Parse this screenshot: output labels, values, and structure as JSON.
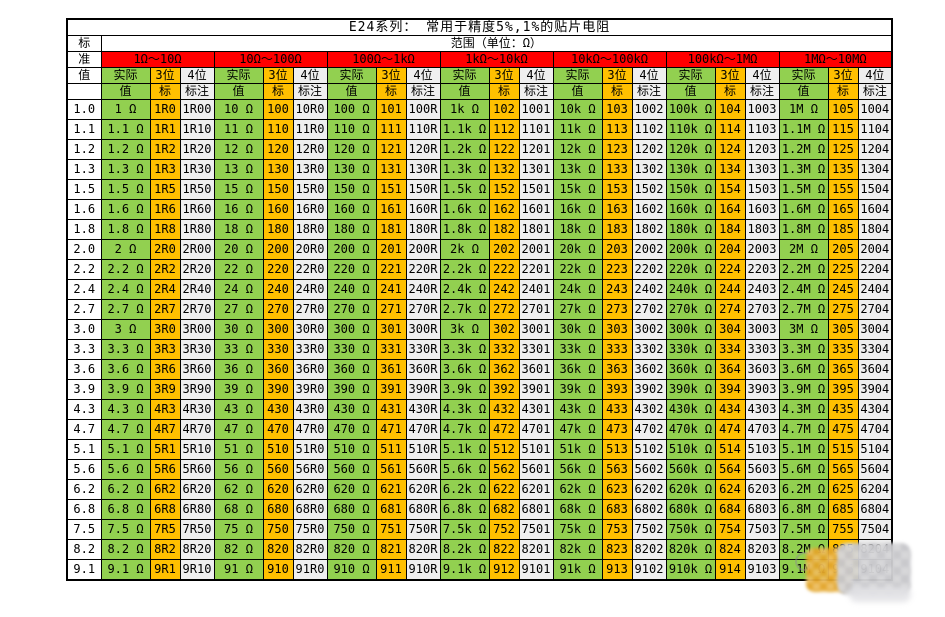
{
  "colors": {
    "green": "#92D050",
    "orange": "#FFC000",
    "red": "#FF0000",
    "gray": "#EFEFEF",
    "border": "#000000",
    "bg": "#FFFFFF"
  },
  "table": {
    "title": "E24系列： 常用于精度5%,1%的贴片电阻",
    "range_label": "范围（单位：Ω）",
    "corner": [
      "标",
      "准",
      "值",
      ""
    ],
    "ranges": [
      "1Ω～10Ω",
      "10Ω～100Ω",
      "100Ω～1kΩ",
      "1kΩ～10kΩ",
      "10kΩ～100kΩ",
      "100kΩ～1MΩ",
      "1MΩ～10MΩ"
    ],
    "sub1": [
      "实际",
      "3位",
      "4位"
    ],
    "sub2": [
      "值",
      "标",
      "标注"
    ],
    "rows": [
      [
        "1.0",
        "1 Ω",
        "1R0",
        "1R00",
        "10 Ω",
        "100",
        "10R0",
        "100 Ω",
        "101",
        "100R",
        "1k Ω",
        "102",
        "1001",
        "10k Ω",
        "103",
        "1002",
        "100k Ω",
        "104",
        "1003",
        "1M Ω",
        "105",
        "1004"
      ],
      [
        "1.1",
        "1.1 Ω",
        "1R1",
        "1R10",
        "11 Ω",
        "110",
        "11R0",
        "110 Ω",
        "111",
        "110R",
        "1.1k Ω",
        "112",
        "1101",
        "11k Ω",
        "113",
        "1102",
        "110k Ω",
        "114",
        "1103",
        "1.1M Ω",
        "115",
        "1104"
      ],
      [
        "1.2",
        "1.2 Ω",
        "1R2",
        "1R20",
        "12 Ω",
        "120",
        "12R0",
        "120 Ω",
        "121",
        "120R",
        "1.2k Ω",
        "122",
        "1201",
        "12k Ω",
        "123",
        "1202",
        "120k Ω",
        "124",
        "1203",
        "1.2M Ω",
        "125",
        "1204"
      ],
      [
        "1.3",
        "1.3 Ω",
        "1R3",
        "1R30",
        "13 Ω",
        "130",
        "13R0",
        "130 Ω",
        "131",
        "130R",
        "1.3k Ω",
        "132",
        "1301",
        "13k Ω",
        "133",
        "1302",
        "130k Ω",
        "134",
        "1303",
        "1.3M Ω",
        "135",
        "1304"
      ],
      [
        "1.5",
        "1.5 Ω",
        "1R5",
        "1R50",
        "15 Ω",
        "150",
        "15R0",
        "150 Ω",
        "151",
        "150R",
        "1.5k Ω",
        "152",
        "1501",
        "15k Ω",
        "153",
        "1502",
        "150k Ω",
        "154",
        "1503",
        "1.5M Ω",
        "155",
        "1504"
      ],
      [
        "1.6",
        "1.6 Ω",
        "1R6",
        "1R60",
        "16 Ω",
        "160",
        "16R0",
        "160 Ω",
        "161",
        "160R",
        "1.6k Ω",
        "162",
        "1601",
        "16k Ω",
        "163",
        "1602",
        "160k Ω",
        "164",
        "1603",
        "1.6M Ω",
        "165",
        "1604"
      ],
      [
        "1.8",
        "1.8 Ω",
        "1R8",
        "1R80",
        "18 Ω",
        "180",
        "18R0",
        "180 Ω",
        "181",
        "180R",
        "1.8k Ω",
        "182",
        "1801",
        "18k Ω",
        "183",
        "1802",
        "180k Ω",
        "184",
        "1803",
        "1.8M Ω",
        "185",
        "1804"
      ],
      [
        "2.0",
        "2 Ω",
        "2R0",
        "2R00",
        "20 Ω",
        "200",
        "20R0",
        "200 Ω",
        "201",
        "200R",
        "2k Ω",
        "202",
        "2001",
        "20k Ω",
        "203",
        "2002",
        "200k Ω",
        "204",
        "2003",
        "2M Ω",
        "205",
        "2004"
      ],
      [
        "2.2",
        "2.2 Ω",
        "2R2",
        "2R20",
        "22 Ω",
        "220",
        "22R0",
        "220 Ω",
        "221",
        "220R",
        "2.2k Ω",
        "222",
        "2201",
        "22k Ω",
        "223",
        "2202",
        "220k Ω",
        "224",
        "2203",
        "2.2M Ω",
        "225",
        "2204"
      ],
      [
        "2.4",
        "2.4 Ω",
        "2R4",
        "2R40",
        "24 Ω",
        "240",
        "24R0",
        "240 Ω",
        "241",
        "240R",
        "2.4k Ω",
        "242",
        "2401",
        "24k Ω",
        "243",
        "2402",
        "240k Ω",
        "244",
        "2403",
        "2.4M Ω",
        "245",
        "2404"
      ],
      [
        "2.7",
        "2.7 Ω",
        "2R7",
        "2R70",
        "27 Ω",
        "270",
        "27R0",
        "270 Ω",
        "271",
        "270R",
        "2.7k Ω",
        "272",
        "2701",
        "27k Ω",
        "273",
        "2702",
        "270k Ω",
        "274",
        "2703",
        "2.7M Ω",
        "275",
        "2704"
      ],
      [
        "3.0",
        "3 Ω",
        "3R0",
        "3R00",
        "30 Ω",
        "300",
        "30R0",
        "300 Ω",
        "301",
        "300R",
        "3k Ω",
        "302",
        "3001",
        "30k Ω",
        "303",
        "3002",
        "300k Ω",
        "304",
        "3003",
        "3M Ω",
        "305",
        "3004"
      ],
      [
        "3.3",
        "3.3 Ω",
        "3R3",
        "3R30",
        "33 Ω",
        "330",
        "33R0",
        "330 Ω",
        "331",
        "330R",
        "3.3k Ω",
        "332",
        "3301",
        "33k Ω",
        "333",
        "3302",
        "330k Ω",
        "334",
        "3303",
        "3.3M Ω",
        "335",
        "3304"
      ],
      [
        "3.6",
        "3.6 Ω",
        "3R6",
        "3R60",
        "36 Ω",
        "360",
        "36R0",
        "360 Ω",
        "361",
        "360R",
        "3.6k Ω",
        "362",
        "3601",
        "36k Ω",
        "363",
        "3602",
        "360k Ω",
        "364",
        "3603",
        "3.6M Ω",
        "365",
        "3604"
      ],
      [
        "3.9",
        "3.9 Ω",
        "3R9",
        "3R90",
        "39 Ω",
        "390",
        "39R0",
        "390 Ω",
        "391",
        "390R",
        "3.9k Ω",
        "392",
        "3901",
        "39k Ω",
        "393",
        "3902",
        "390k Ω",
        "394",
        "3903",
        "3.9M Ω",
        "395",
        "3904"
      ],
      [
        "4.3",
        "4.3 Ω",
        "4R3",
        "4R30",
        "43 Ω",
        "430",
        "43R0",
        "430 Ω",
        "431",
        "430R",
        "4.3k Ω",
        "432",
        "4301",
        "43k Ω",
        "433",
        "4302",
        "430k Ω",
        "434",
        "4303",
        "4.3M Ω",
        "435",
        "4304"
      ],
      [
        "4.7",
        "4.7 Ω",
        "4R7",
        "4R70",
        "47 Ω",
        "470",
        "47R0",
        "470 Ω",
        "471",
        "470R",
        "4.7k Ω",
        "472",
        "4701",
        "47k Ω",
        "473",
        "4702",
        "470k Ω",
        "474",
        "4703",
        "4.7M Ω",
        "475",
        "4704"
      ],
      [
        "5.1",
        "5.1 Ω",
        "5R1",
        "5R10",
        "51 Ω",
        "510",
        "51R0",
        "510 Ω",
        "511",
        "510R",
        "5.1k Ω",
        "512",
        "5101",
        "51k Ω",
        "513",
        "5102",
        "510k Ω",
        "514",
        "5103",
        "5.1M Ω",
        "515",
        "5104"
      ],
      [
        "5.6",
        "5.6 Ω",
        "5R6",
        "5R60",
        "56 Ω",
        "560",
        "56R0",
        "560 Ω",
        "561",
        "560R",
        "5.6k Ω",
        "562",
        "5601",
        "56k Ω",
        "563",
        "5602",
        "560k Ω",
        "564",
        "5603",
        "5.6M Ω",
        "565",
        "5604"
      ],
      [
        "6.2",
        "6.2 Ω",
        "6R2",
        "6R20",
        "62 Ω",
        "620",
        "62R0",
        "620 Ω",
        "621",
        "620R",
        "6.2k Ω",
        "622",
        "6201",
        "62k Ω",
        "623",
        "6202",
        "620k Ω",
        "624",
        "6203",
        "6.2M Ω",
        "625",
        "6204"
      ],
      [
        "6.8",
        "6.8 Ω",
        "6R8",
        "6R80",
        "68 Ω",
        "680",
        "68R0",
        "680 Ω",
        "681",
        "680R",
        "6.8k Ω",
        "682",
        "6801",
        "68k Ω",
        "683",
        "6802",
        "680k Ω",
        "684",
        "6803",
        "6.8M Ω",
        "685",
        "6804"
      ],
      [
        "7.5",
        "7.5 Ω",
        "7R5",
        "7R50",
        "75 Ω",
        "750",
        "75R0",
        "750 Ω",
        "751",
        "750R",
        "7.5k Ω",
        "752",
        "7501",
        "75k Ω",
        "753",
        "7502",
        "750k Ω",
        "754",
        "7503",
        "7.5M Ω",
        "755",
        "7504"
      ],
      [
        "8.2",
        "8.2 Ω",
        "8R2",
        "8R20",
        "82 Ω",
        "820",
        "82R0",
        "820 Ω",
        "821",
        "820R",
        "8.2k Ω",
        "822",
        "8201",
        "82k Ω",
        "823",
        "8202",
        "820k Ω",
        "824",
        "8203",
        "8.2M Ω",
        "825",
        "8204"
      ],
      [
        "9.1",
        "9.1 Ω",
        "9R1",
        "9R10",
        "91 Ω",
        "910",
        "91R0",
        "910 Ω",
        "911",
        "910R",
        "9.1k Ω",
        "912",
        "9101",
        "91k Ω",
        "913",
        "9102",
        "910k Ω",
        "914",
        "9103",
        "9.1M Ω",
        "915",
        "9104"
      ]
    ]
  }
}
